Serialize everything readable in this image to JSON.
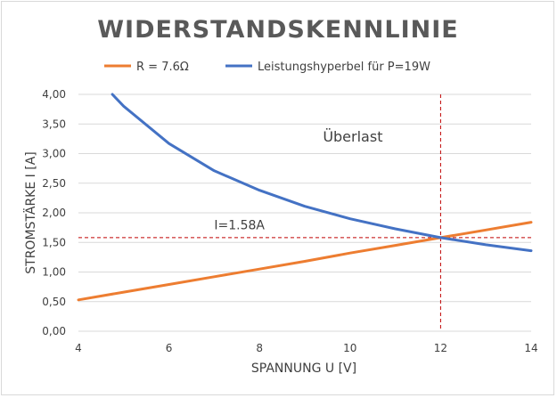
{
  "chart_data": {
    "type": "line",
    "title": "WIDERSTANDSKENNLINIE",
    "xlabel": "SPANNUNG U [V]",
    "ylabel": "STROMSTÄRKE I [A]",
    "xlim": [
      4,
      14
    ],
    "ylim": [
      0,
      4
    ],
    "x_ticks": [
      "4",
      "6",
      "8",
      "10",
      "12",
      "14"
    ],
    "y_ticks": [
      "0,00",
      "0,50",
      "1,00",
      "1,50",
      "2,00",
      "2,50",
      "3,00",
      "3,50",
      "4,00"
    ],
    "grid": "horizontal",
    "legend_position": "top",
    "series": [
      {
        "name": "R = 7.6Ω",
        "color": "#ED7D31",
        "x": [
          4,
          5,
          6,
          7,
          8,
          9,
          10,
          11,
          12,
          13,
          14
        ],
        "y": [
          0.53,
          0.66,
          0.79,
          0.92,
          1.05,
          1.18,
          1.32,
          1.45,
          1.58,
          1.71,
          1.84
        ]
      },
      {
        "name": "Leistungshyperbel für P=19W",
        "color": "#4472C4",
        "x": [
          4.75,
          5,
          6,
          7,
          8,
          9,
          10,
          11,
          12,
          13,
          14
        ],
        "y": [
          4.0,
          3.8,
          3.17,
          2.71,
          2.38,
          2.11,
          1.9,
          1.73,
          1.58,
          1.46,
          1.36
        ]
      }
    ],
    "reference_lines": [
      {
        "axis": "x",
        "value": 12,
        "color": "#C00000"
      },
      {
        "axis": "y",
        "value": 1.58,
        "color": "#C00000"
      }
    ],
    "annotations": [
      {
        "text": "Überlast",
        "x": 9.4,
        "y": 3.2
      },
      {
        "text": "I=1.58A",
        "x": 7,
        "y": 1.72
      }
    ]
  }
}
